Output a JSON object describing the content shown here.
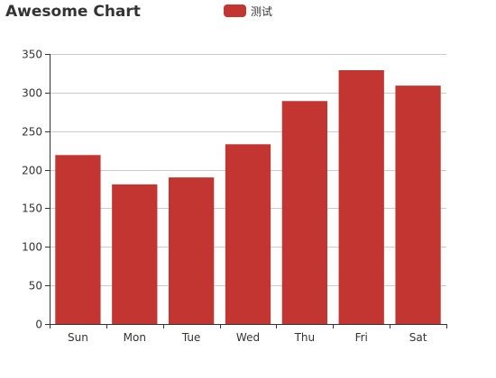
{
  "chart_data": {
    "type": "bar",
    "title": "Awesome Chart",
    "categories": [
      "Sun",
      "Mon",
      "Tue",
      "Wed",
      "Thu",
      "Fri",
      "Sat"
    ],
    "series": [
      {
        "name": "测试",
        "values": [
          219,
          181,
          190,
          233,
          289,
          329,
          309
        ]
      }
    ],
    "ylim": [
      0,
      350
    ],
    "yticks": [
      0,
      50,
      100,
      150,
      200,
      250,
      300,
      350
    ],
    "xlabel": "",
    "ylabel": "",
    "grid": true,
    "legend_position": "top-center",
    "colors": {
      "bar": "#c23531",
      "grid": "#cccccc",
      "axis": "#333333",
      "text": "#333333"
    }
  }
}
